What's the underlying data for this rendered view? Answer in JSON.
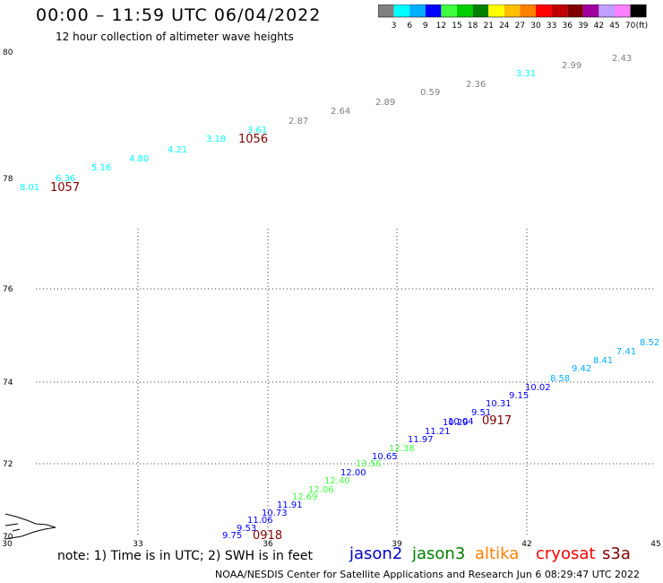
{
  "title": "00:00 – 11:59 UTC 06/04/2022",
  "subtitle": "12 hour collection of altimeter wave heights",
  "colorbar": {
    "unit": "(ft)",
    "ticks": [
      "3",
      "6",
      "9",
      "12",
      "15",
      "18",
      "21",
      "24",
      "27",
      "30",
      "33",
      "36",
      "39",
      "42",
      "45",
      "70"
    ],
    "colors": [
      "#808080",
      "#00ffff",
      "#00b0ff",
      "#0000ff",
      "#40ff40",
      "#00d000",
      "#008000",
      "#ffff00",
      "#ffc000",
      "#ff8000",
      "#ff0000",
      "#c00000",
      "#800000",
      "#a000a0",
      "#c0a0ff",
      "#ff80ff",
      "#000000"
    ]
  },
  "map": {
    "lat_ticks": [
      "80",
      "78",
      "76",
      "74",
      "72",
      "70"
    ],
    "lon_ticks": [
      "30",
      "33",
      "36",
      "39",
      "42",
      "45"
    ],
    "lat_range": [
      70,
      80
    ],
    "lon_range": [
      30,
      45
    ]
  },
  "observations": [
    {
      "text": "8.01",
      "color": "#00ffff"
    },
    {
      "text": "6.36",
      "color": "#00ffff"
    },
    {
      "text": "5.16",
      "color": "#00ffff"
    },
    {
      "text": "4.80",
      "color": "#00ffff"
    },
    {
      "text": "4.21",
      "color": "#00ffff"
    },
    {
      "text": "3.18",
      "color": "#00ffff"
    },
    {
      "text": "3.61",
      "color": "#00ffff"
    },
    {
      "text": "2.87",
      "color": "#808080"
    },
    {
      "text": "2.64",
      "color": "#808080"
    },
    {
      "text": "2.89",
      "color": "#808080"
    },
    {
      "text": "0.59",
      "color": "#808080"
    },
    {
      "text": "2.36",
      "color": "#808080"
    },
    {
      "text": "3.31",
      "color": "#00ffff"
    },
    {
      "text": "2.99",
      "color": "#808080"
    },
    {
      "text": "2.43",
      "color": "#808080"
    },
    {
      "text": "1057",
      "color": "#800000"
    },
    {
      "text": "1056",
      "color": "#800000"
    },
    {
      "text": "8.52",
      "color": "#00b0ff"
    },
    {
      "text": "7.41",
      "color": "#00b0ff"
    },
    {
      "text": "8.41",
      "color": "#00b0ff"
    },
    {
      "text": "9.42",
      "color": "#00b0ff"
    },
    {
      "text": "8.58",
      "color": "#00b0ff"
    },
    {
      "text": "10.02",
      "color": "#0000ff"
    },
    {
      "text": "9.15",
      "color": "#0000ff"
    },
    {
      "text": "10.31",
      "color": "#0000ff"
    },
    {
      "text": "9.51",
      "color": "#0000ff"
    },
    {
      "text": "10.04",
      "color": "#0000ff"
    },
    {
      "text": "10.29",
      "color": "#0000ff"
    },
    {
      "text": "11.21",
      "color": "#0000ff"
    },
    {
      "text": "11.97",
      "color": "#0000ff"
    },
    {
      "text": "12.38",
      "color": "#40ff40"
    },
    {
      "text": "10.65",
      "color": "#0000ff"
    },
    {
      "text": "13.56",
      "color": "#40ff40"
    },
    {
      "text": "12.00",
      "color": "#0000ff"
    },
    {
      "text": "12.40",
      "color": "#40ff40"
    },
    {
      "text": "12.06",
      "color": "#40ff40"
    },
    {
      "text": "12.69",
      "color": "#40ff40"
    },
    {
      "text": "11.91",
      "color": "#0000ff"
    },
    {
      "text": "10.73",
      "color": "#0000ff"
    },
    {
      "text": "11.06",
      "color": "#0000ff"
    },
    {
      "text": "9.53",
      "color": "#0000ff"
    },
    {
      "text": "9.75",
      "color": "#0000ff"
    },
    {
      "text": "0917",
      "color": "#800000"
    },
    {
      "text": "0918",
      "color": "#800000"
    }
  ],
  "note": "note:  1) Time is in UTC;  2) SWH is in feet",
  "legend": [
    {
      "label": "jason2",
      "color": "#0000cc"
    },
    {
      "label": "jason3",
      "color": "#008000"
    },
    {
      "label": "altika",
      "color": "#ff8000"
    },
    {
      "label": "cryosat",
      "color": "#ff0000"
    },
    {
      "label": "s3a",
      "color": "#800000"
    }
  ],
  "footer": "NOAA/NESDIS Center for Satellite Applications and Research    Jun  6 08:29:47 UTC 2022"
}
